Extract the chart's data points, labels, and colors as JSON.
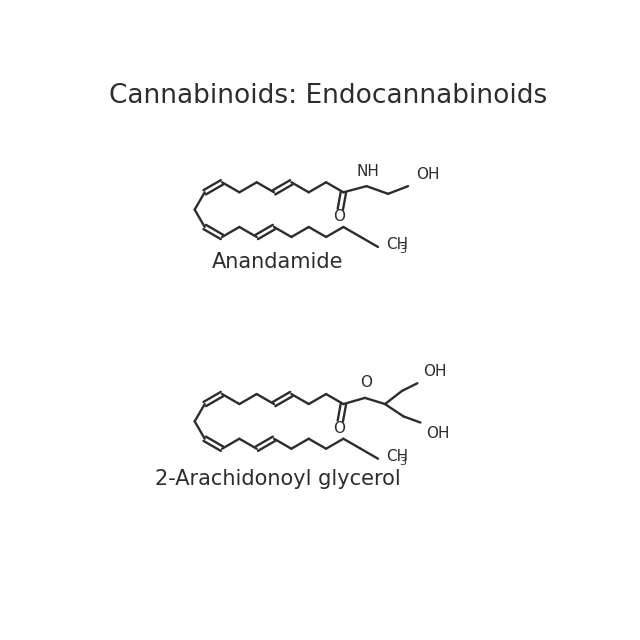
{
  "title": "Cannabinoids: Endocannabinoids",
  "title_fontsize": 19,
  "label1": "Anandamide",
  "label2": "2-Arachidonoyl glycerol",
  "label_fontsize": 15,
  "bg_color": "#ffffff",
  "line_color": "#2d2d2d",
  "text_color": "#2d2d2d",
  "lw": 1.7
}
